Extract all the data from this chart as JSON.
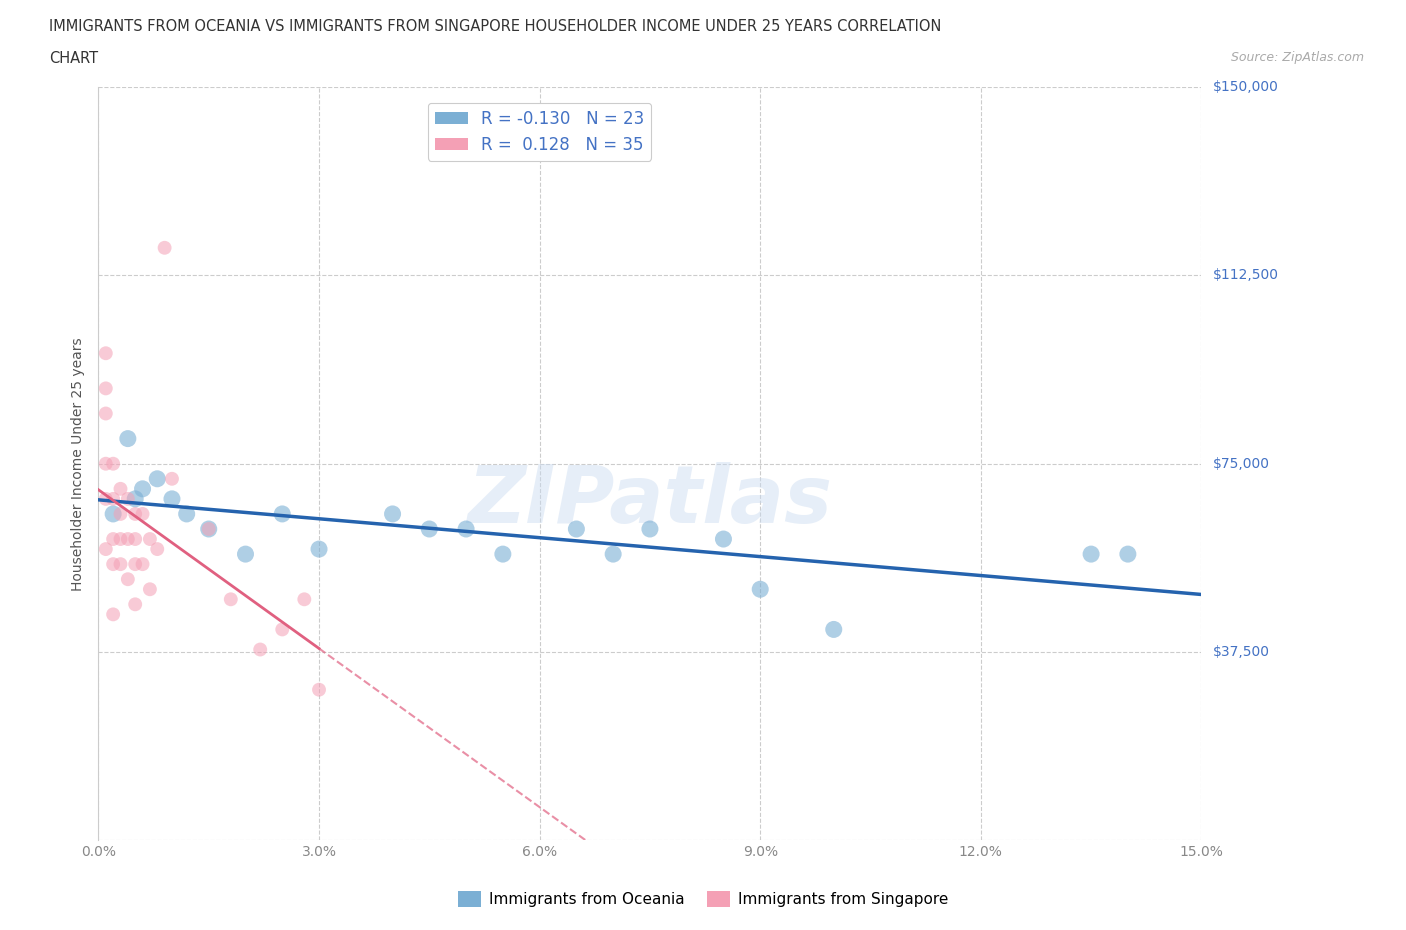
{
  "title_line1": "IMMIGRANTS FROM OCEANIA VS IMMIGRANTS FROM SINGAPORE HOUSEHOLDER INCOME UNDER 25 YEARS CORRELATION",
  "title_line2": "CHART",
  "source": "Source: ZipAtlas.com",
  "ylabel": "Householder Income Under 25 years",
  "xlim": [
    0,
    0.15
  ],
  "ylim": [
    0,
    150000
  ],
  "xticks": [
    0.0,
    0.03,
    0.06,
    0.09,
    0.12,
    0.15
  ],
  "xtick_labels": [
    "0.0%",
    "3.0%",
    "6.0%",
    "9.0%",
    "12.0%",
    "15.0%"
  ],
  "yticks": [
    0,
    37500,
    75000,
    112500,
    150000
  ],
  "ytick_labels": [
    "",
    "$37,500",
    "$75,000",
    "$112,500",
    "$150,000"
  ],
  "legend_r_oceania": "-0.130",
  "legend_n_oceania": "23",
  "legend_r_singapore": "0.128",
  "legend_n_singapore": "35",
  "oceania_color": "#7bafd4",
  "singapore_color": "#f4a0b5",
  "oceania_line_color": "#2563ae",
  "singapore_line_color": "#e06080",
  "watermark": "ZIPatlas",
  "background_color": "#ffffff",
  "grid_color": "#cccccc",
  "oceania_x": [
    0.002,
    0.004,
    0.005,
    0.006,
    0.008,
    0.01,
    0.012,
    0.015,
    0.02,
    0.025,
    0.03,
    0.04,
    0.045,
    0.05,
    0.055,
    0.065,
    0.07,
    0.075,
    0.085,
    0.09,
    0.1,
    0.135,
    0.14
  ],
  "oceania_y": [
    65000,
    80000,
    68000,
    70000,
    72000,
    68000,
    65000,
    62000,
    57000,
    65000,
    58000,
    65000,
    62000,
    62000,
    57000,
    62000,
    57000,
    62000,
    60000,
    50000,
    42000,
    57000,
    57000
  ],
  "singapore_x": [
    0.001,
    0.001,
    0.001,
    0.001,
    0.001,
    0.001,
    0.002,
    0.002,
    0.002,
    0.002,
    0.002,
    0.003,
    0.003,
    0.003,
    0.003,
    0.004,
    0.004,
    0.004,
    0.005,
    0.005,
    0.005,
    0.005,
    0.006,
    0.006,
    0.007,
    0.007,
    0.008,
    0.009,
    0.01,
    0.015,
    0.018,
    0.022,
    0.025,
    0.028,
    0.03
  ],
  "singapore_y": [
    97000,
    90000,
    85000,
    75000,
    68000,
    58000,
    75000,
    68000,
    60000,
    55000,
    45000,
    70000,
    65000,
    60000,
    55000,
    68000,
    60000,
    52000,
    65000,
    60000,
    55000,
    47000,
    65000,
    55000,
    60000,
    50000,
    58000,
    118000,
    72000,
    62000,
    48000,
    38000,
    42000,
    48000,
    30000
  ],
  "oceania_scatter_size": 150,
  "singapore_scatter_size": 100,
  "oceania_scatter_alpha": 0.6,
  "singapore_scatter_alpha": 0.55
}
